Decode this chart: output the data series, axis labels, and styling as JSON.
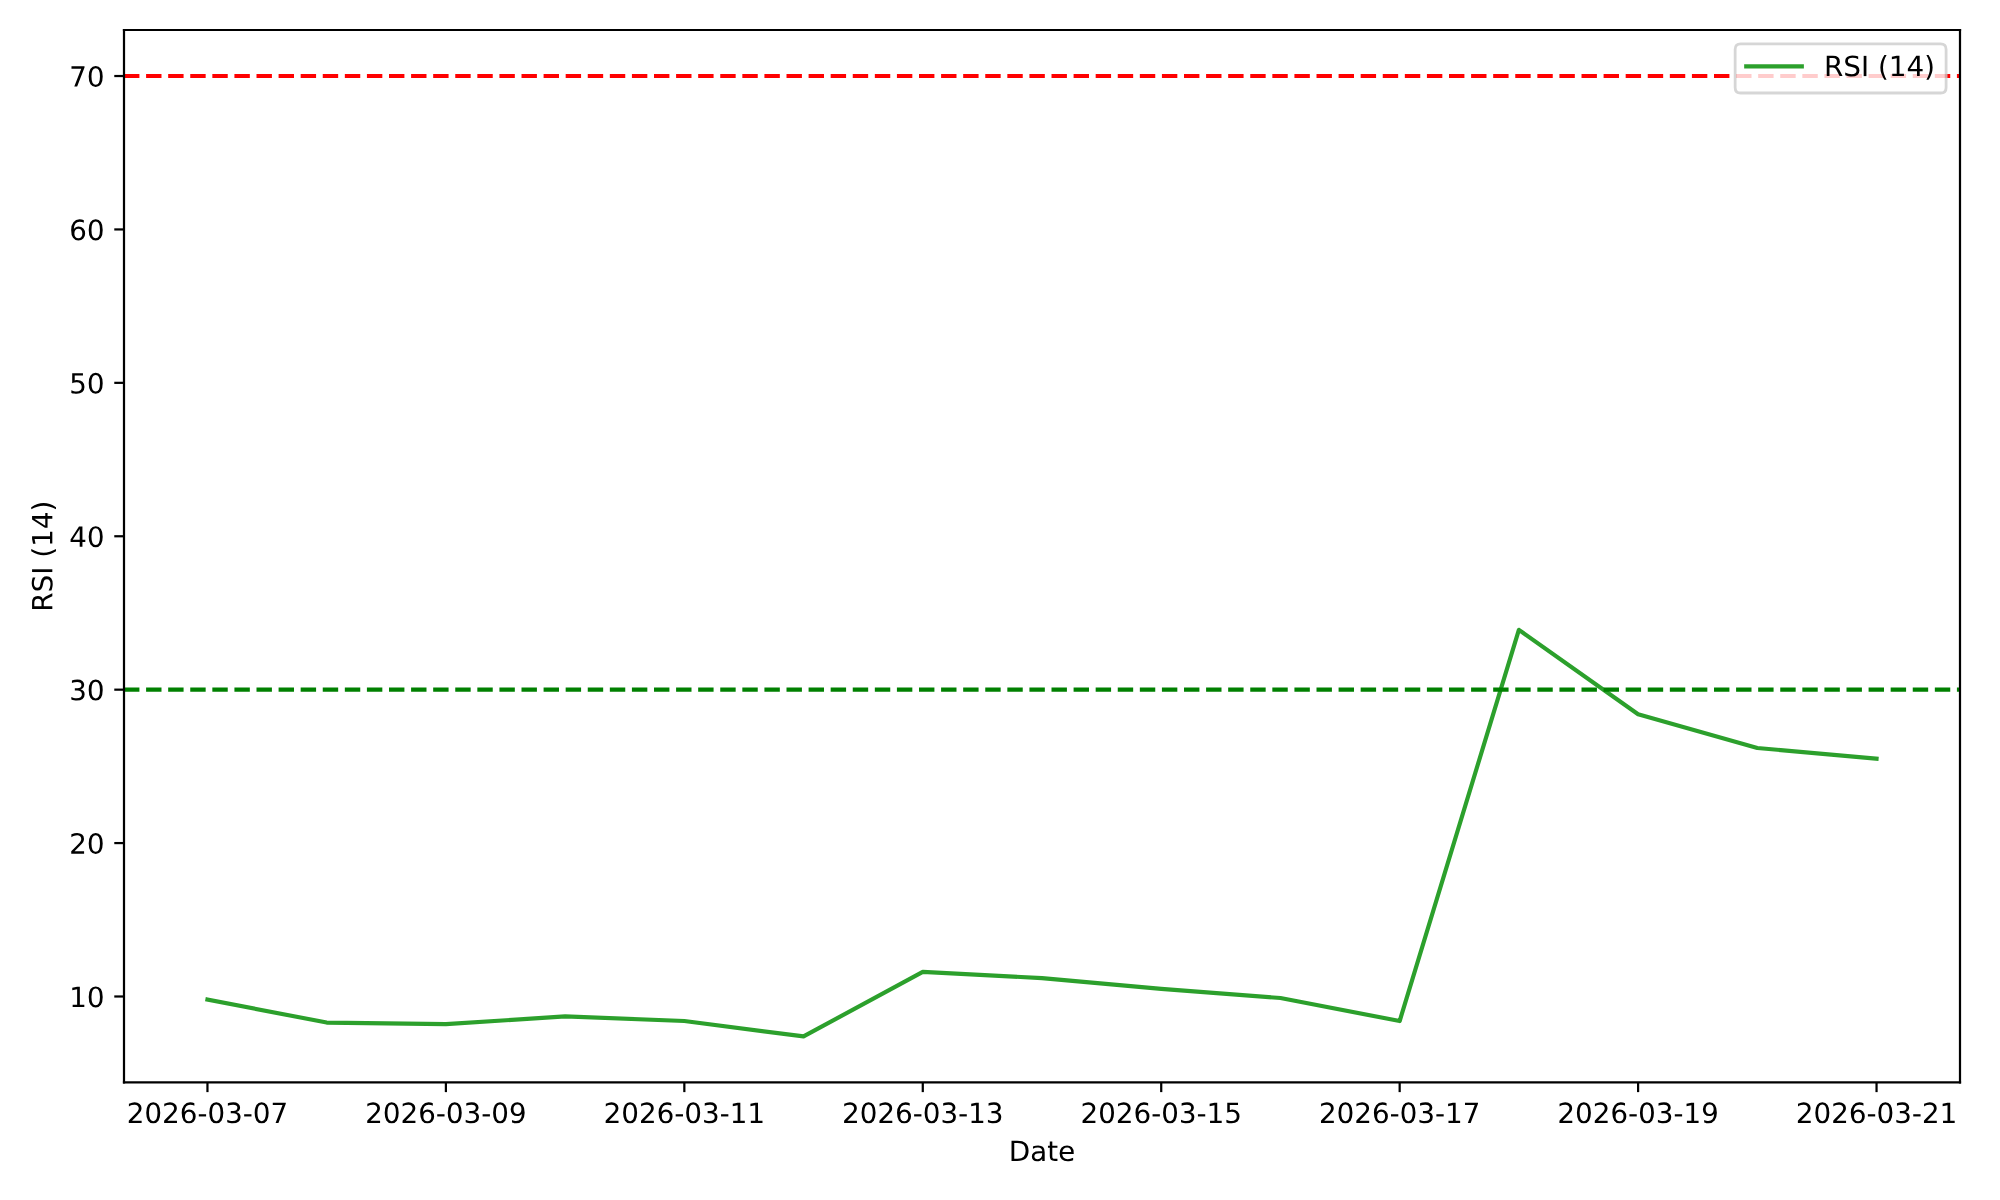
{
  "chart_data": {
    "type": "line",
    "xlabel": "Date",
    "ylabel": "RSI (14)",
    "x": [
      "2026-03-07",
      "2026-03-08",
      "2026-03-09",
      "2026-03-10",
      "2026-03-11",
      "2026-03-12",
      "2026-03-13",
      "2026-03-14",
      "2026-03-15",
      "2026-03-16",
      "2026-03-17",
      "2026-03-18",
      "2026-03-19",
      "2026-03-20",
      "2026-03-21"
    ],
    "series": [
      {
        "name": "RSI (14)",
        "color": "#2ca02c",
        "values": [
          9.8,
          8.3,
          8.2,
          8.7,
          8.4,
          7.4,
          11.6,
          11.2,
          10.5,
          9.9,
          8.4,
          33.9,
          28.4,
          26.2,
          25.5
        ]
      }
    ],
    "xlim": [
      "2026-03-06T07:12",
      "2026-03-21T16:48"
    ],
    "xticks": [
      "2026-03-07",
      "2026-03-09",
      "2026-03-11",
      "2026-03-13",
      "2026-03-15",
      "2026-03-17",
      "2026-03-19",
      "2026-03-21"
    ],
    "ylim": [
      4.4,
      73.0
    ],
    "yticks": [
      10,
      20,
      30,
      40,
      50,
      60,
      70
    ],
    "ref_lines": [
      {
        "axis": "y",
        "value": 70,
        "color": "#ff0000",
        "line_style": "dashed"
      },
      {
        "axis": "y",
        "value": 30,
        "color": "#008000",
        "line_style": "dashed"
      }
    ],
    "legend": "top right",
    "grid": false,
    "marker": "none",
    "line_style": "solid"
  }
}
